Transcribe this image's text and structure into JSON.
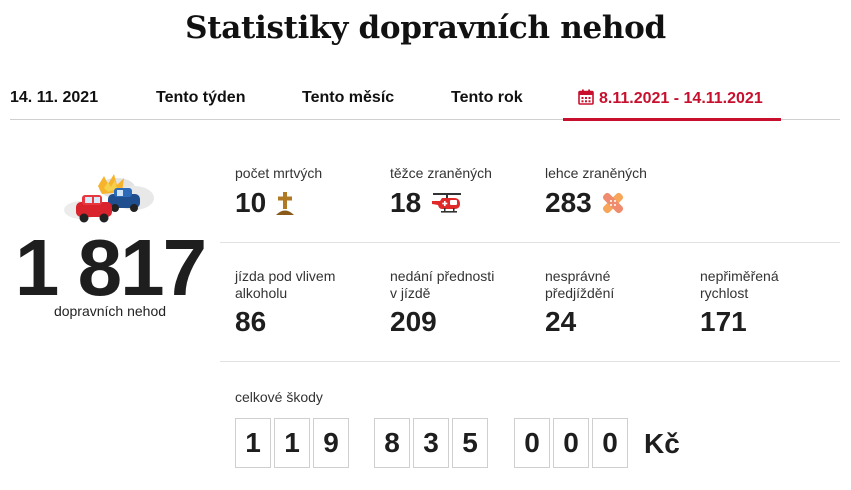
{
  "page": {
    "title": "Statistiky dopravních nehod"
  },
  "tabs": [
    {
      "label": "14. 11. 2021",
      "active": false
    },
    {
      "label": "Tento týden",
      "active": false
    },
    {
      "label": "Tento měsíc",
      "active": false
    },
    {
      "label": "Tento rok",
      "active": false
    },
    {
      "label": "8.11.2021 - 14.11.2021",
      "active": true,
      "icon": "calendar-icon"
    }
  ],
  "accent_color": "#c8102e",
  "summary": {
    "total": "1 817",
    "total_label": "dopravních nehod",
    "icon": "car-crash-icon"
  },
  "stats_row1": [
    {
      "label": "počet mrtvých",
      "value": "10",
      "icon": "grave-cross-icon"
    },
    {
      "label": "těžce zraněných",
      "value": "18",
      "icon": "rescue-helicopter-icon"
    },
    {
      "label": "lehce zraněných",
      "value": "283",
      "icon": "bandage-icon"
    }
  ],
  "stats_row2": [
    {
      "label_line1": "jízda pod vlivem",
      "label_line2": "alkoholu",
      "value": "86"
    },
    {
      "label_line1": "nedání přednosti",
      "label_line2": "v jízdě",
      "value": "209"
    },
    {
      "label_line1": "nesprávné",
      "label_line2": "předjíždění",
      "value": "24"
    },
    {
      "label_line1": "nepřiměřená",
      "label_line2": "rychlost",
      "value": "171"
    }
  ],
  "damage": {
    "label": "celkové škody",
    "digits": [
      "1",
      "1",
      "9",
      "8",
      "3",
      "5",
      "0",
      "0",
      "0"
    ],
    "currency": "Kč"
  }
}
